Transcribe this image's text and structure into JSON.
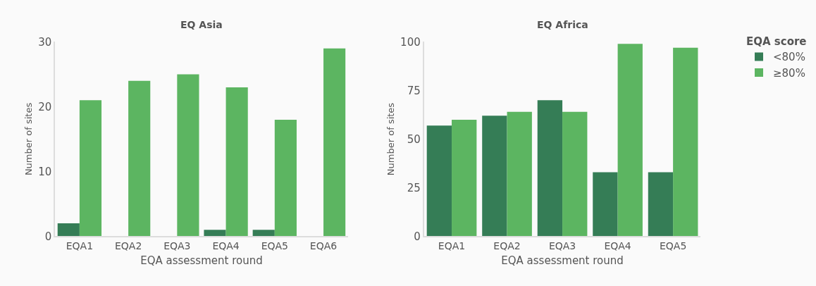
{
  "chart_data": [
    {
      "type": "bar",
      "title": "EQ Asia",
      "xlabel": "EQA assessment round",
      "ylabel": "Number of sites",
      "categories": [
        "EQA1",
        "EQA2",
        "EQA3",
        "EQA4",
        "EQA5",
        "EQA6"
      ],
      "series": [
        {
          "color": "#357d56",
          "values": [
            2,
            0,
            0,
            1,
            1,
            0
          ]
        },
        {
          "color": "#5cb561",
          "values": [
            21,
            24,
            25,
            23,
            18,
            29
          ]
        }
      ],
      "ylim": [
        0,
        30
      ],
      "yticks": [
        0,
        10,
        20,
        30
      ]
    },
    {
      "type": "bar",
      "title": "EQ Africa",
      "xlabel": "EQA assessment round",
      "ylabel": "Number of sites",
      "legend_title": "EQA score",
      "categories": [
        "EQA1",
        "EQA2",
        "EQA3",
        "EQA4",
        "EQA5"
      ],
      "series": [
        {
          "name": "<80%",
          "color": "#357d56",
          "values": [
            57,
            62,
            70,
            33,
            33
          ]
        },
        {
          "name": "≥80%",
          "color": "#5cb561",
          "values": [
            60,
            64,
            64,
            99,
            97
          ]
        }
      ],
      "ylim": [
        0,
        100
      ],
      "yticks": [
        0,
        25,
        50,
        75,
        100
      ],
      "legend": "right"
    }
  ]
}
